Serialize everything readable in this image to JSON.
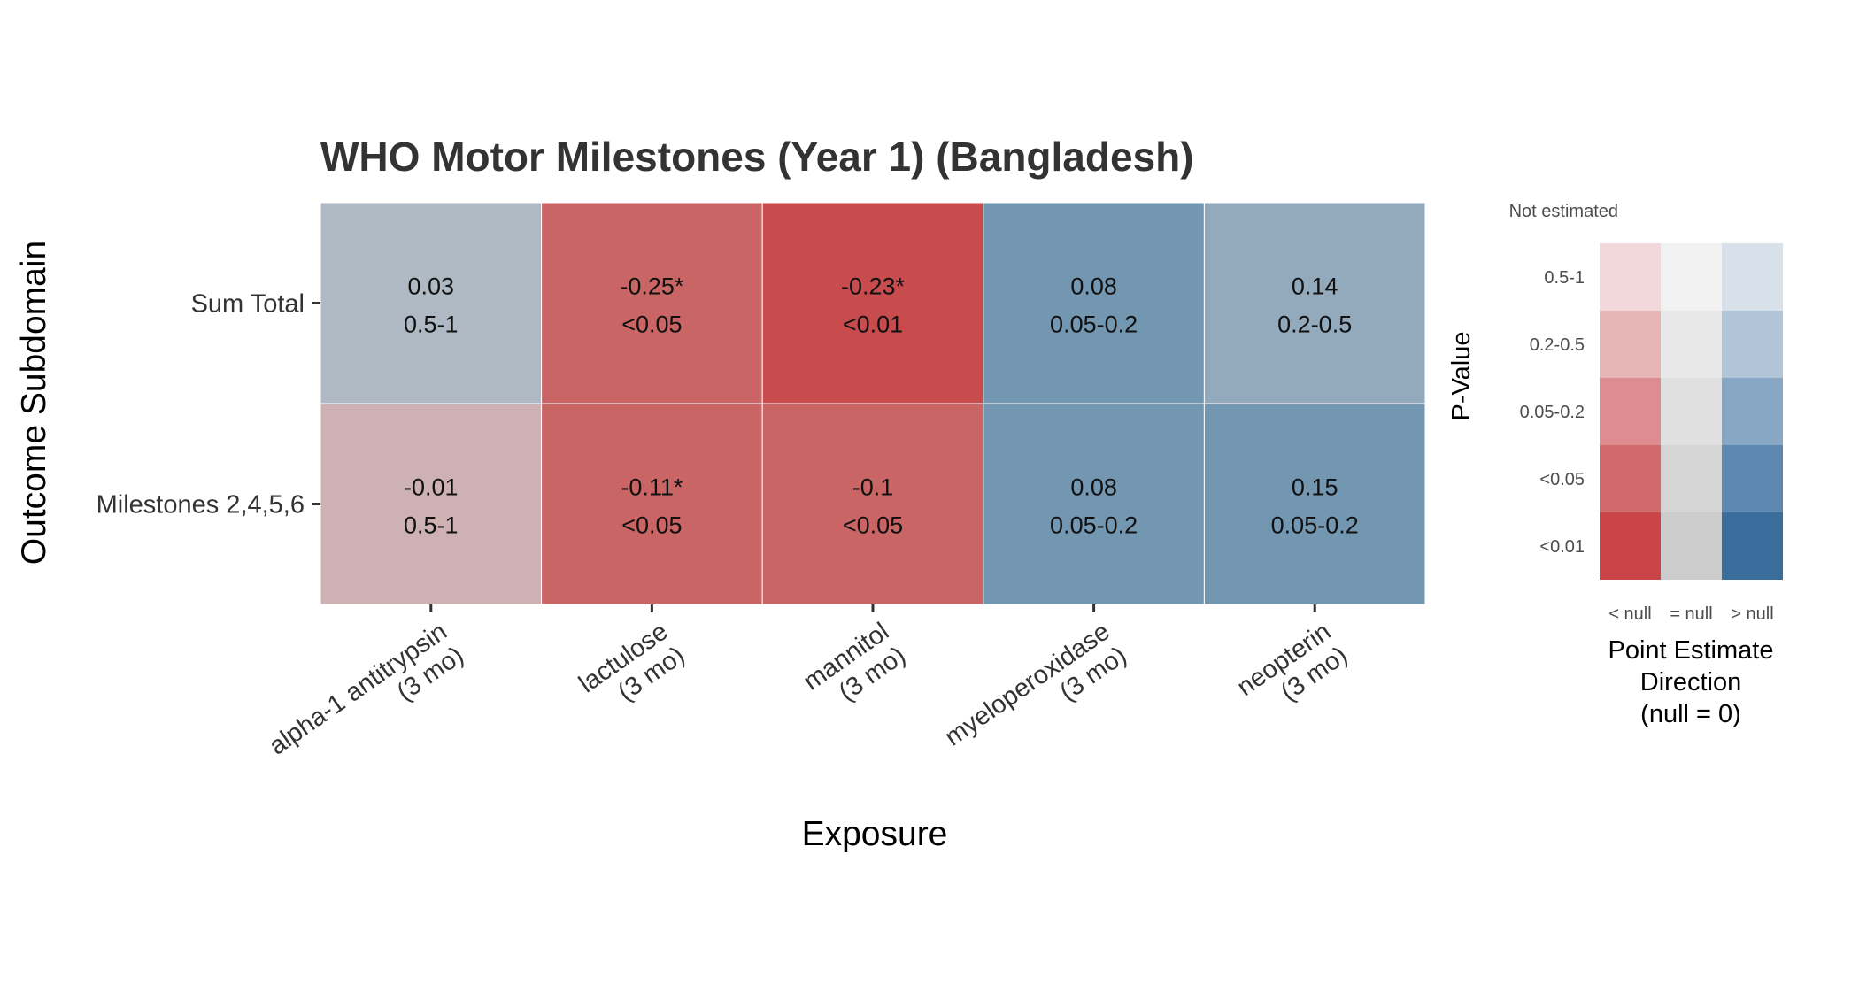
{
  "chart_data": {
    "type": "heatmap",
    "title": "WHO Motor Milestones (Year 1) (Bangladesh)",
    "xlabel": "Exposure",
    "ylabel": "Outcome Subdomain",
    "columns": [
      [
        "alpha-1 antitrypsin",
        "(3 mo)"
      ],
      [
        "lactulose",
        "(3 mo)"
      ],
      [
        "mannitol",
        "(3 mo)"
      ],
      [
        "myeloperoxidase",
        "(3 mo)"
      ],
      [
        "neopterin",
        "(3 mo)"
      ]
    ],
    "rows": [
      "Sum Total",
      "Milestones 2,4,5,6"
    ],
    "cells": [
      [
        {
          "estimate": "0.03",
          "p": "0.5-1",
          "color": "#aeb9c3"
        },
        {
          "estimate": "-0.25*",
          "p": "<0.05",
          "color": "#c96564"
        },
        {
          "estimate": "-0.23*",
          "p": "<0.01",
          "color": "#c84b4d"
        },
        {
          "estimate": "0.08",
          "p": "0.05-0.2",
          "color": "#7396b1"
        },
        {
          "estimate": "0.14",
          "p": "0.2-0.5",
          "color": "#93a9bc"
        }
      ],
      [
        {
          "estimate": "-0.01",
          "p": "0.5-1",
          "color": "#cdb1b3"
        },
        {
          "estimate": "-0.11*",
          "p": "<0.05",
          "color": "#c96564"
        },
        {
          "estimate": "-0.1",
          "p": "<0.05",
          "color": "#c96564"
        },
        {
          "estimate": "0.08",
          "p": "0.05-0.2",
          "color": "#7396b1"
        },
        {
          "estimate": "0.15",
          "p": "0.05-0.2",
          "color": "#7396b1"
        }
      ]
    ],
    "legend": {
      "not_estimated_label": "Not estimated",
      "pvalue_title": "P-Value",
      "pvalue_levels": [
        "0.5-1",
        "0.2-0.5",
        "0.05-0.2",
        "<0.05",
        "<0.01"
      ],
      "direction_levels": [
        "< null",
        "= null",
        "> null"
      ],
      "direction_title": [
        "Point Estimate",
        "Direction",
        "(null = 0)"
      ],
      "grid_colors": [
        [
          "#f2d8da",
          "#f2f2f2",
          "#d8e1ea"
        ],
        [
          "#e8b5b7",
          "#e8e8e8",
          "#b1c5d9"
        ],
        [
          "#dd8d90",
          "#e0e0e0",
          "#88a7c5"
        ],
        [
          "#d26a6c",
          "#d5d5d5",
          "#5d88b0"
        ],
        [
          "#c94548",
          "#cccccc",
          "#3a6d9b"
        ]
      ]
    }
  }
}
